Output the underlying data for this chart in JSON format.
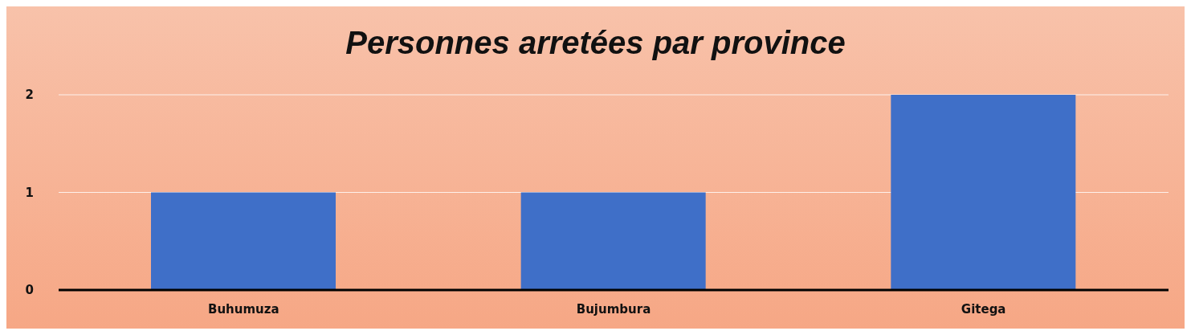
{
  "chart_data": {
    "type": "bar",
    "title": "Personnes arretées par province",
    "categories": [
      "Buhumuza",
      "Bujumbura",
      "Gitega"
    ],
    "values": [
      1,
      1,
      2
    ],
    "color": "#3f6fc8",
    "ylim": [
      0,
      2
    ],
    "yticks": [
      0,
      1,
      2
    ],
    "grid": "y"
  }
}
